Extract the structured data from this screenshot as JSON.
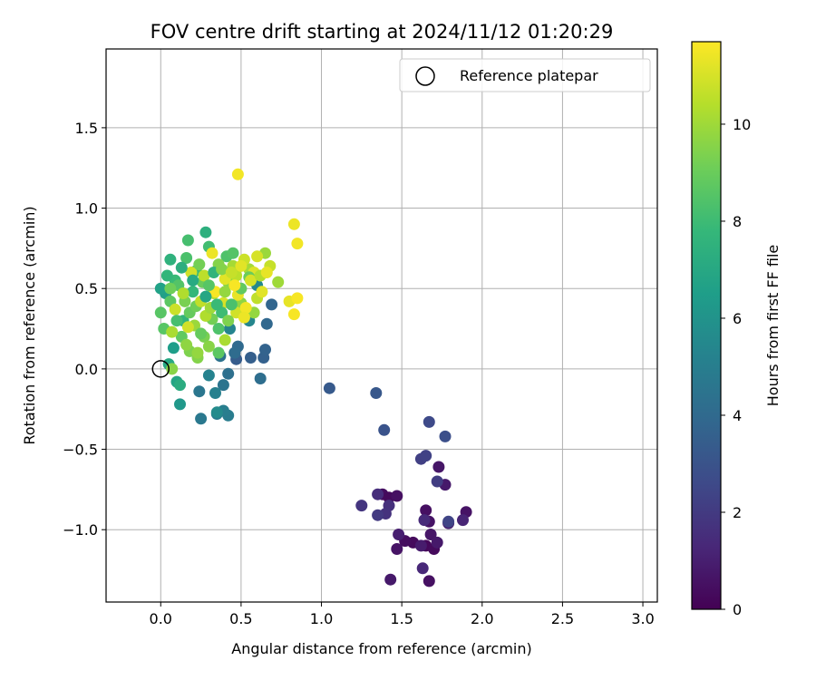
{
  "chart_data": {
    "type": "scatter",
    "title": "FOV centre drift starting at 2024/11/12 01:20:29",
    "xlabel": "Angular distance from reference (arcmin)",
    "ylabel": "Rotation from reference (arcmin)",
    "xlim": [
      -0.34,
      3.09
    ],
    "ylim": [
      -1.45,
      1.99
    ],
    "x_ticks": [
      0.0,
      0.5,
      1.0,
      1.5,
      2.0,
      2.5,
      3.0
    ],
    "x_tick_labels": [
      "0.0",
      "0.5",
      "1.0",
      "1.5",
      "2.0",
      "2.5",
      "3.0"
    ],
    "y_ticks": [
      -1.0,
      -0.5,
      0.0,
      0.5,
      1.0,
      1.5
    ],
    "y_tick_labels": [
      "−1.0",
      "−0.5",
      "0.0",
      "0.5",
      "1.0",
      "1.5"
    ],
    "grid": true,
    "colormap": "viridis",
    "colorbar": {
      "label": "Hours from first FF file",
      "range": [
        0,
        11.7
      ],
      "ticks": [
        0,
        2,
        4,
        6,
        8,
        10
      ],
      "tick_labels": [
        "0",
        "2",
        "4",
        "6",
        "8",
        "10"
      ]
    },
    "legend": {
      "placement": "top-right",
      "entries": [
        "Reference platepar"
      ]
    },
    "reference_point": {
      "x": 0.0,
      "y": 0.0
    },
    "series": [
      {
        "points": [
          {
            "x": 1.65,
            "y": -1.1,
            "c": 0.2
          },
          {
            "x": 1.7,
            "y": -1.12,
            "c": 0.3
          },
          {
            "x": 1.67,
            "y": -1.32,
            "c": 0.5
          },
          {
            "x": 1.57,
            "y": -1.08,
            "c": 0.3
          },
          {
            "x": 1.52,
            "y": -1.07,
            "c": 0.4
          },
          {
            "x": 1.47,
            "y": -1.12,
            "c": 0.6
          },
          {
            "x": 1.43,
            "y": -1.31,
            "c": 0.8
          },
          {
            "x": 1.38,
            "y": -0.78,
            "c": 0.4
          },
          {
            "x": 1.42,
            "y": -0.8,
            "c": 0.3
          },
          {
            "x": 1.47,
            "y": -0.79,
            "c": 0.5
          },
          {
            "x": 1.65,
            "y": -0.88,
            "c": 0.5
          },
          {
            "x": 1.67,
            "y": -0.95,
            "c": 0.6
          },
          {
            "x": 1.73,
            "y": -0.61,
            "c": 0.7
          },
          {
            "x": 1.77,
            "y": -0.72,
            "c": 0.8
          },
          {
            "x": 1.9,
            "y": -0.89,
            "c": 0.6
          },
          {
            "x": 1.68,
            "y": -1.03,
            "c": 0.7
          },
          {
            "x": 1.72,
            "y": -1.08,
            "c": 0.8
          },
          {
            "x": 1.62,
            "y": -1.1,
            "c": 0.9
          },
          {
            "x": 1.48,
            "y": -1.03,
            "c": 1.0
          },
          {
            "x": 1.79,
            "y": -0.96,
            "c": 1.1
          },
          {
            "x": 1.88,
            "y": -0.94,
            "c": 1.2
          },
          {
            "x": 1.63,
            "y": -1.24,
            "c": 1.3
          },
          {
            "x": 1.64,
            "y": -0.94,
            "c": 1.4
          },
          {
            "x": 1.35,
            "y": -0.78,
            "c": 1.5
          },
          {
            "x": 1.42,
            "y": -0.85,
            "c": 1.6
          },
          {
            "x": 1.4,
            "y": -0.9,
            "c": 1.7
          },
          {
            "x": 1.25,
            "y": -0.85,
            "c": 1.8
          },
          {
            "x": 1.35,
            "y": -0.91,
            "c": 2.0
          },
          {
            "x": 1.72,
            "y": -0.7,
            "c": 2.1
          },
          {
            "x": 1.62,
            "y": -0.56,
            "c": 2.2
          },
          {
            "x": 1.65,
            "y": -0.54,
            "c": 2.3
          },
          {
            "x": 1.79,
            "y": -0.95,
            "c": 2.4
          },
          {
            "x": 1.67,
            "y": -0.33,
            "c": 2.6
          },
          {
            "x": 1.77,
            "y": -0.42,
            "c": 2.8
          },
          {
            "x": 1.39,
            "y": -0.38,
            "c": 3.0
          },
          {
            "x": 1.34,
            "y": -0.15,
            "c": 3.2
          },
          {
            "x": 1.05,
            "y": -0.12,
            "c": 3.3
          },
          {
            "x": 0.47,
            "y": 0.06,
            "c": 3.4
          },
          {
            "x": 0.56,
            "y": 0.07,
            "c": 3.5
          },
          {
            "x": 0.64,
            "y": 0.07,
            "c": 3.6
          },
          {
            "x": 0.65,
            "y": 0.12,
            "c": 3.7
          },
          {
            "x": 0.69,
            "y": 0.4,
            "c": 3.8
          },
          {
            "x": 0.66,
            "y": 0.28,
            "c": 3.9
          },
          {
            "x": 0.48,
            "y": 0.14,
            "c": 4.0
          },
          {
            "x": 0.46,
            "y": 0.1,
            "c": 4.1
          },
          {
            "x": 0.62,
            "y": -0.06,
            "c": 4.2
          },
          {
            "x": 0.42,
            "y": -0.03,
            "c": 4.3
          },
          {
            "x": 0.37,
            "y": 0.08,
            "c": 4.4
          },
          {
            "x": 0.39,
            "y": -0.1,
            "c": 4.5
          },
          {
            "x": 0.24,
            "y": -0.14,
            "c": 4.6
          },
          {
            "x": 0.25,
            "y": -0.31,
            "c": 4.7
          },
          {
            "x": 0.35,
            "y": -0.28,
            "c": 4.8
          },
          {
            "x": 0.42,
            "y": -0.29,
            "c": 4.9
          },
          {
            "x": 0.39,
            "y": -0.26,
            "c": 5.0
          },
          {
            "x": 0.34,
            "y": -0.15,
            "c": 5.1
          },
          {
            "x": 0.3,
            "y": -0.04,
            "c": 5.2
          },
          {
            "x": 0.43,
            "y": 0.25,
            "c": 5.3
          },
          {
            "x": 0.55,
            "y": 0.3,
            "c": 5.4
          },
          {
            "x": 0.6,
            "y": 0.52,
            "c": 5.5
          },
          {
            "x": 0.35,
            "y": -0.27,
            "c": 5.6
          },
          {
            "x": 0.12,
            "y": -0.22,
            "c": 6.2
          },
          {
            "x": 0.08,
            "y": 0.13,
            "c": 6.5
          },
          {
            "x": 0.03,
            "y": 0.47,
            "c": 6.6
          },
          {
            "x": 0.0,
            "y": 0.5,
            "c": 6.7
          },
          {
            "x": 0.1,
            "y": -0.08,
            "c": 6.8
          },
          {
            "x": 0.05,
            "y": 0.03,
            "c": 7.0
          },
          {
            "x": 0.12,
            "y": -0.1,
            "c": 7.2
          },
          {
            "x": 0.28,
            "y": 0.85,
            "c": 7.4
          },
          {
            "x": 0.06,
            "y": 0.68,
            "c": 7.5
          },
          {
            "x": 0.14,
            "y": 0.3,
            "c": 7.6
          },
          {
            "x": 0.2,
            "y": 0.48,
            "c": 7.8
          },
          {
            "x": 0.09,
            "y": 0.55,
            "c": 7.9
          },
          {
            "x": 0.22,
            "y": 0.61,
            "c": 8.0
          },
          {
            "x": 0.3,
            "y": 0.76,
            "c": 8.1
          },
          {
            "x": 0.17,
            "y": 0.8,
            "c": 8.2
          },
          {
            "x": 0.16,
            "y": 0.69,
            "c": 8.3
          },
          {
            "x": 0.41,
            "y": 0.7,
            "c": 8.4
          },
          {
            "x": 0.45,
            "y": 0.72,
            "c": 8.5
          },
          {
            "x": 0.0,
            "y": 0.35,
            "c": 8.6
          },
          {
            "x": 0.02,
            "y": 0.25,
            "c": 8.6
          },
          {
            "x": 0.06,
            "y": 0.42,
            "c": 8.7
          },
          {
            "x": 0.13,
            "y": 0.2,
            "c": 8.8
          },
          {
            "x": 0.18,
            "y": 0.35,
            "c": 8.9
          },
          {
            "x": 0.26,
            "y": 0.54,
            "c": 9.0
          },
          {
            "x": 0.22,
            "y": 0.39,
            "c": 9.1
          },
          {
            "x": 0.32,
            "y": 0.31,
            "c": 9.2
          },
          {
            "x": 0.27,
            "y": 0.2,
            "c": 9.3
          },
          {
            "x": 0.18,
            "y": 0.11,
            "c": 9.4
          },
          {
            "x": 0.23,
            "y": 0.07,
            "c": 9.5
          },
          {
            "x": 0.36,
            "y": 0.65,
            "c": 9.5
          },
          {
            "x": 0.42,
            "y": 0.54,
            "c": 9.6
          },
          {
            "x": 0.5,
            "y": 0.41,
            "c": 9.7
          },
          {
            "x": 0.58,
            "y": 0.35,
            "c": 9.8
          },
          {
            "x": 0.65,
            "y": 0.72,
            "c": 9.9
          },
          {
            "x": 0.73,
            "y": 0.54,
            "c": 10.0
          },
          {
            "x": 0.55,
            "y": 0.62,
            "c": 10.1
          },
          {
            "x": 0.4,
            "y": 0.18,
            "c": 10.2
          },
          {
            "x": 0.28,
            "y": 0.33,
            "c": 10.3
          },
          {
            "x": 0.33,
            "y": 0.47,
            "c": 10.4
          },
          {
            "x": 0.47,
            "y": 0.58,
            "c": 10.5
          },
          {
            "x": 0.6,
            "y": 0.44,
            "c": 10.6
          },
          {
            "x": 0.68,
            "y": 0.64,
            "c": 10.7
          },
          {
            "x": 0.52,
            "y": 0.68,
            "c": 10.8
          },
          {
            "x": 0.47,
            "y": 0.35,
            "c": 10.9
          },
          {
            "x": 0.39,
            "y": 0.41,
            "c": 11.0
          },
          {
            "x": 0.58,
            "y": 0.6,
            "c": 11.1
          },
          {
            "x": 0.63,
            "y": 0.48,
            "c": 11.2
          },
          {
            "x": 0.8,
            "y": 0.42,
            "c": 11.3
          },
          {
            "x": 0.83,
            "y": 0.9,
            "c": 11.4
          },
          {
            "x": 0.85,
            "y": 0.78,
            "c": 11.5
          },
          {
            "x": 0.48,
            "y": 1.21,
            "c": 11.5
          },
          {
            "x": 0.83,
            "y": 0.34,
            "c": 11.6
          },
          {
            "x": 0.85,
            "y": 0.44,
            "c": 11.6
          },
          {
            "x": 0.32,
            "y": 0.72,
            "c": 11.4
          },
          {
            "x": 0.48,
            "y": 0.46,
            "c": 11.3
          },
          {
            "x": 0.53,
            "y": 0.38,
            "c": 11.5
          },
          {
            "x": 0.4,
            "y": 0.56,
            "c": 11.2
          },
          {
            "x": 0.6,
            "y": 0.7,
            "c": 11.0
          },
          {
            "x": 0.34,
            "y": 0.48,
            "c": 11.6
          },
          {
            "x": 0.27,
            "y": 0.58,
            "c": 10.5
          },
          {
            "x": 0.19,
            "y": 0.6,
            "c": 10.9
          },
          {
            "x": 0.09,
            "y": 0.37,
            "c": 10.8
          },
          {
            "x": 0.07,
            "y": 0.23,
            "c": 10.2
          },
          {
            "x": 0.21,
            "y": 0.27,
            "c": 9.9
          },
          {
            "x": 0.25,
            "y": 0.42,
            "c": 10.6
          },
          {
            "x": 0.36,
            "y": 0.1,
            "c": 8.7
          },
          {
            "x": 0.3,
            "y": 0.14,
            "c": 9.6
          },
          {
            "x": 0.23,
            "y": 0.1,
            "c": 9.8
          },
          {
            "x": 0.15,
            "y": 0.42,
            "c": 9.3
          },
          {
            "x": 0.11,
            "y": 0.52,
            "c": 8.5
          },
          {
            "x": 0.04,
            "y": 0.58,
            "c": 7.7
          },
          {
            "x": 0.13,
            "y": 0.63,
            "c": 7.3
          },
          {
            "x": 0.2,
            "y": 0.55,
            "c": 7.1
          },
          {
            "x": 0.28,
            "y": 0.45,
            "c": 6.9
          },
          {
            "x": 0.33,
            "y": 0.6,
            "c": 7.6
          },
          {
            "x": 0.38,
            "y": 0.35,
            "c": 8.0
          },
          {
            "x": 0.44,
            "y": 0.4,
            "c": 8.3
          },
          {
            "x": 0.5,
            "y": 0.5,
            "c": 8.8
          },
          {
            "x": 0.55,
            "y": 0.57,
            "c": 9.0
          },
          {
            "x": 0.36,
            "y": 0.25,
            "c": 8.4
          },
          {
            "x": 0.42,
            "y": 0.3,
            "c": 9.4
          },
          {
            "x": 0.16,
            "y": 0.15,
            "c": 9.7
          },
          {
            "x": 0.25,
            "y": 0.22,
            "c": 8.9
          },
          {
            "x": 0.31,
            "y": 0.38,
            "c": 10.0
          },
          {
            "x": 0.1,
            "y": 0.3,
            "c": 8.2
          },
          {
            "x": 0.06,
            "y": 0.5,
            "c": 9.1
          },
          {
            "x": 0.14,
            "y": 0.47,
            "c": 10.3
          },
          {
            "x": 0.45,
            "y": 0.64,
            "c": 10.1
          },
          {
            "x": 0.38,
            "y": 0.62,
            "c": 9.5
          },
          {
            "x": 0.24,
            "y": 0.65,
            "c": 9.2
          },
          {
            "x": 0.07,
            "y": 0.0,
            "c": 9.6
          },
          {
            "x": 0.56,
            "y": 0.55,
            "c": 11.0
          },
          {
            "x": 0.62,
            "y": 0.58,
            "c": 10.4
          },
          {
            "x": 0.5,
            "y": 0.64,
            "c": 11.2
          },
          {
            "x": 0.44,
            "y": 0.6,
            "c": 10.7
          },
          {
            "x": 0.17,
            "y": 0.26,
            "c": 10.9
          },
          {
            "x": 0.4,
            "y": 0.48,
            "c": 9.8
          },
          {
            "x": 0.3,
            "y": 0.52,
            "c": 8.6
          },
          {
            "x": 0.35,
            "y": 0.4,
            "c": 7.9
          },
          {
            "x": 0.52,
            "y": 0.32,
            "c": 11.4
          },
          {
            "x": 0.46,
            "y": 0.52,
            "c": 11.6
          },
          {
            "x": 0.66,
            "y": 0.6,
            "c": 11.3
          }
        ]
      }
    ]
  }
}
